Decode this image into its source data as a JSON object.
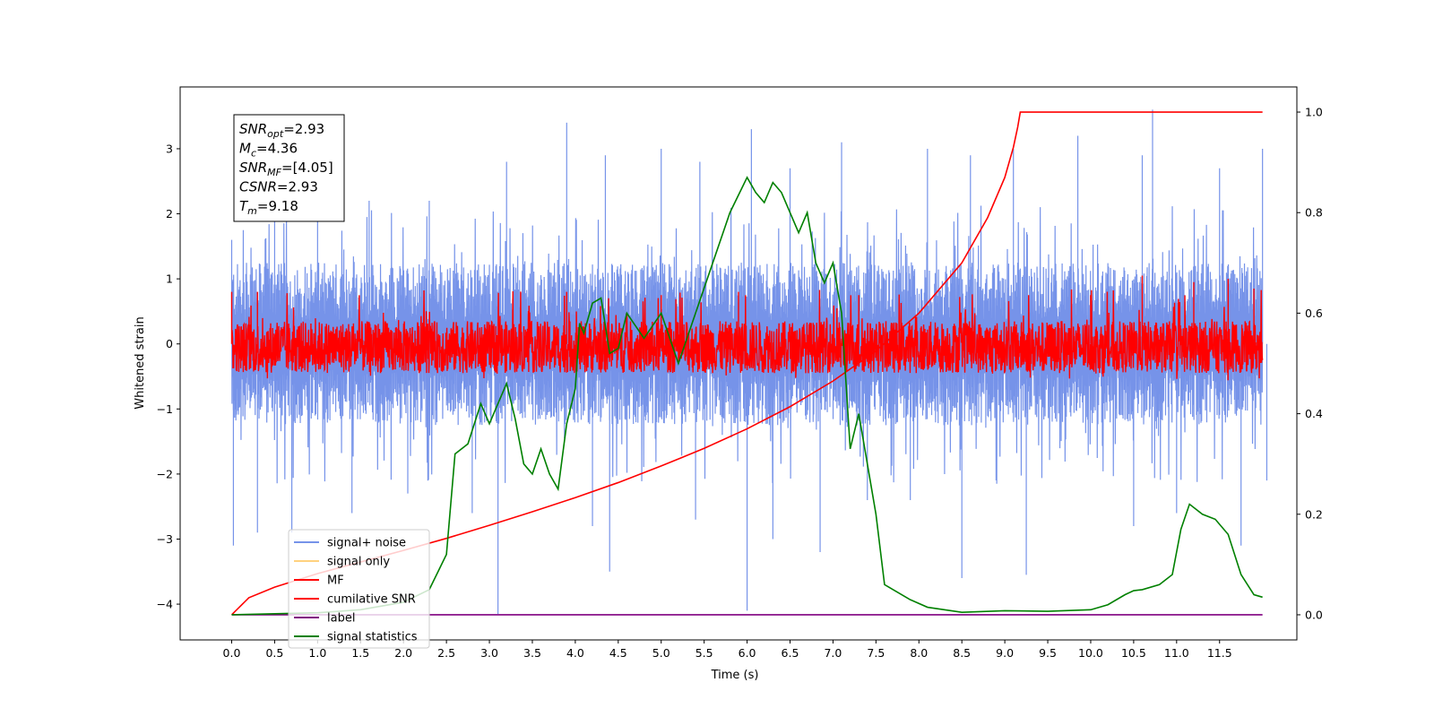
{
  "chart_data": {
    "type": "line",
    "xlabel": "Time (s)",
    "ylabel": "Whitened strain",
    "xlim": [
      -0.6,
      12.4
    ],
    "ylim": [
      -4.55,
      3.95
    ],
    "y2lim": [
      -0.05,
      1.05
    ],
    "x_ticks": [
      "0.0",
      "0.5",
      "1.0",
      "1.5",
      "2.0",
      "2.5",
      "3.0",
      "3.5",
      "4.0",
      "4.5",
      "5.0",
      "5.5",
      "6.0",
      "6.5",
      "7.0",
      "7.5",
      "8.0",
      "8.5",
      "9.0",
      "9.5",
      "10.0",
      "10.5",
      "11.0",
      "11.5"
    ],
    "y_ticks": [
      "3",
      "2",
      "1",
      "0",
      "−1",
      "−2",
      "−3",
      "−4"
    ],
    "y2_ticks": [
      "1.0",
      "0.8",
      "0.6",
      "0.4",
      "0.2",
      "0.0"
    ],
    "grid": false,
    "legend_position": "lower-left",
    "legend": [
      {
        "label": "signal+ noise",
        "color": "#4169e1"
      },
      {
        "label": "signal only",
        "color": "#ffa500"
      },
      {
        "label": "MF",
        "color": "#ff0000"
      },
      {
        "label": "cumilative SNR",
        "color": "#ff0000"
      },
      {
        "label": "label",
        "color": "#800080"
      },
      {
        "label": "signal statistics",
        "color": "#008000"
      }
    ],
    "info_box": [
      {
        "main": "SNR",
        "sub": "opt",
        "rest": "=2.93"
      },
      {
        "main": "M",
        "sub": "c",
        "rest": "=4.36"
      },
      {
        "main": "SNR",
        "sub": "MF",
        "rest": "=[4.05]"
      },
      {
        "main": "CSNR",
        "sub": "",
        "rest": "=2.93"
      },
      {
        "main": "T",
        "sub": "m",
        "rest": "=9.18"
      }
    ],
    "series": [
      {
        "name": "signal+ noise",
        "axis": "left",
        "color": "#4169e1",
        "noise_mode": "bimodal",
        "core_band": [
          -1.25,
          1.25
        ],
        "spike_max": [
          [
            0.0,
            1.6
          ],
          [
            0.02,
            -3.1
          ],
          [
            0.3,
            -2.9
          ],
          [
            0.5,
            2.5
          ],
          [
            0.7,
            -2.9
          ],
          [
            1.0,
            2.1
          ],
          [
            1.4,
            -2.6
          ],
          [
            1.6,
            2.2
          ],
          [
            2.05,
            -2.3
          ],
          [
            2.3,
            2.2
          ],
          [
            2.8,
            -2.6
          ],
          [
            3.1,
            -4.15
          ],
          [
            3.2,
            2.8
          ],
          [
            3.9,
            3.4
          ],
          [
            4.2,
            -2.8
          ],
          [
            4.35,
            2.9
          ],
          [
            4.4,
            -3.5
          ],
          [
            5.0,
            3.0
          ],
          [
            5.4,
            -2.7
          ],
          [
            5.45,
            2.8
          ],
          [
            6.0,
            -4.1
          ],
          [
            6.05,
            3.3
          ],
          [
            6.3,
            -3.0
          ],
          [
            6.5,
            2.7
          ],
          [
            6.85,
            -3.2
          ],
          [
            7.1,
            3.1
          ],
          [
            7.4,
            -2.4
          ],
          [
            7.9,
            -2.4
          ],
          [
            8.1,
            3.0
          ],
          [
            8.5,
            -3.6
          ],
          [
            8.6,
            2.9
          ],
          [
            9.1,
            3.0
          ],
          [
            9.25,
            -3.55
          ],
          [
            9.85,
            3.2
          ],
          [
            10.5,
            -2.8
          ],
          [
            10.6,
            2.9
          ],
          [
            10.72,
            3.6
          ],
          [
            11.0,
            -2.6
          ],
          [
            11.5,
            2.7
          ],
          [
            11.75,
            -3.1
          ],
          [
            12.0,
            3.0
          ],
          [
            12.05,
            -2.1
          ]
        ]
      },
      {
        "name": "MF",
        "axis": "left",
        "color": "#ff0000",
        "noise_mode": "band",
        "core_band": [
          -0.45,
          0.55
        ],
        "spike_max": [
          [
            0.0,
            0.8
          ],
          [
            0.3,
            0.8
          ],
          [
            3.9,
            0.8
          ],
          [
            5.0,
            0.75
          ],
          [
            5.9,
            0.8
          ],
          [
            7.3,
            0.75
          ],
          [
            10.0,
            0.75
          ],
          [
            10.6,
            1.05
          ],
          [
            11.2,
            0.95
          ],
          [
            11.6,
            1.0
          ],
          [
            11.9,
            0.85
          ]
        ]
      },
      {
        "name": "cumilative SNR",
        "axis": "right",
        "color": "#ff0000",
        "x": [
          0.0,
          0.2,
          0.5,
          1.0,
          1.5,
          2.0,
          2.5,
          3.0,
          3.5,
          4.0,
          4.5,
          5.0,
          5.5,
          6.0,
          6.5,
          7.0,
          7.5,
          8.0,
          8.5,
          8.8,
          9.0,
          9.1,
          9.15,
          9.18,
          12.0
        ],
        "y": [
          0.0,
          0.034,
          0.055,
          0.082,
          0.105,
          0.128,
          0.152,
          0.178,
          0.205,
          0.233,
          0.263,
          0.296,
          0.331,
          0.37,
          0.414,
          0.465,
          0.525,
          0.6,
          0.7,
          0.79,
          0.87,
          0.93,
          0.97,
          1.0,
          1.0
        ]
      },
      {
        "name": "label",
        "axis": "right",
        "color": "#800080",
        "x": [
          0.0,
          12.0
        ],
        "y": [
          0.0,
          0.0
        ]
      },
      {
        "name": "signal statistics",
        "axis": "right",
        "color": "#008000",
        "x": [
          0.0,
          0.5,
          1.0,
          1.5,
          2.0,
          2.3,
          2.5,
          2.6,
          2.75,
          2.9,
          3.0,
          3.1,
          3.2,
          3.3,
          3.4,
          3.5,
          3.6,
          3.7,
          3.8,
          3.9,
          4.0,
          4.05,
          4.1,
          4.2,
          4.3,
          4.4,
          4.5,
          4.6,
          4.8,
          5.0,
          5.2,
          5.4,
          5.6,
          5.8,
          6.0,
          6.1,
          6.2,
          6.3,
          6.4,
          6.6,
          6.7,
          6.8,
          6.9,
          7.0,
          7.1,
          7.2,
          7.3,
          7.4,
          7.5,
          7.6,
          7.7,
          7.9,
          8.1,
          8.5,
          9.0,
          9.5,
          10.0,
          10.2,
          10.4,
          10.5,
          10.6,
          10.8,
          10.95,
          11.05,
          11.15,
          11.3,
          11.45,
          11.6,
          11.75,
          11.9,
          12.0
        ],
        "y": [
          0.0,
          0.002,
          0.004,
          0.01,
          0.025,
          0.05,
          0.12,
          0.32,
          0.34,
          0.42,
          0.38,
          0.42,
          0.46,
          0.39,
          0.3,
          0.28,
          0.33,
          0.28,
          0.25,
          0.38,
          0.45,
          0.58,
          0.56,
          0.62,
          0.63,
          0.52,
          0.53,
          0.6,
          0.55,
          0.6,
          0.5,
          0.6,
          0.7,
          0.8,
          0.87,
          0.84,
          0.82,
          0.86,
          0.84,
          0.76,
          0.8,
          0.7,
          0.66,
          0.7,
          0.6,
          0.33,
          0.4,
          0.3,
          0.2,
          0.06,
          0.05,
          0.03,
          0.015,
          0.005,
          0.008,
          0.007,
          0.01,
          0.02,
          0.04,
          0.048,
          0.05,
          0.06,
          0.08,
          0.17,
          0.22,
          0.2,
          0.19,
          0.16,
          0.08,
          0.04,
          0.035
        ]
      }
    ]
  }
}
